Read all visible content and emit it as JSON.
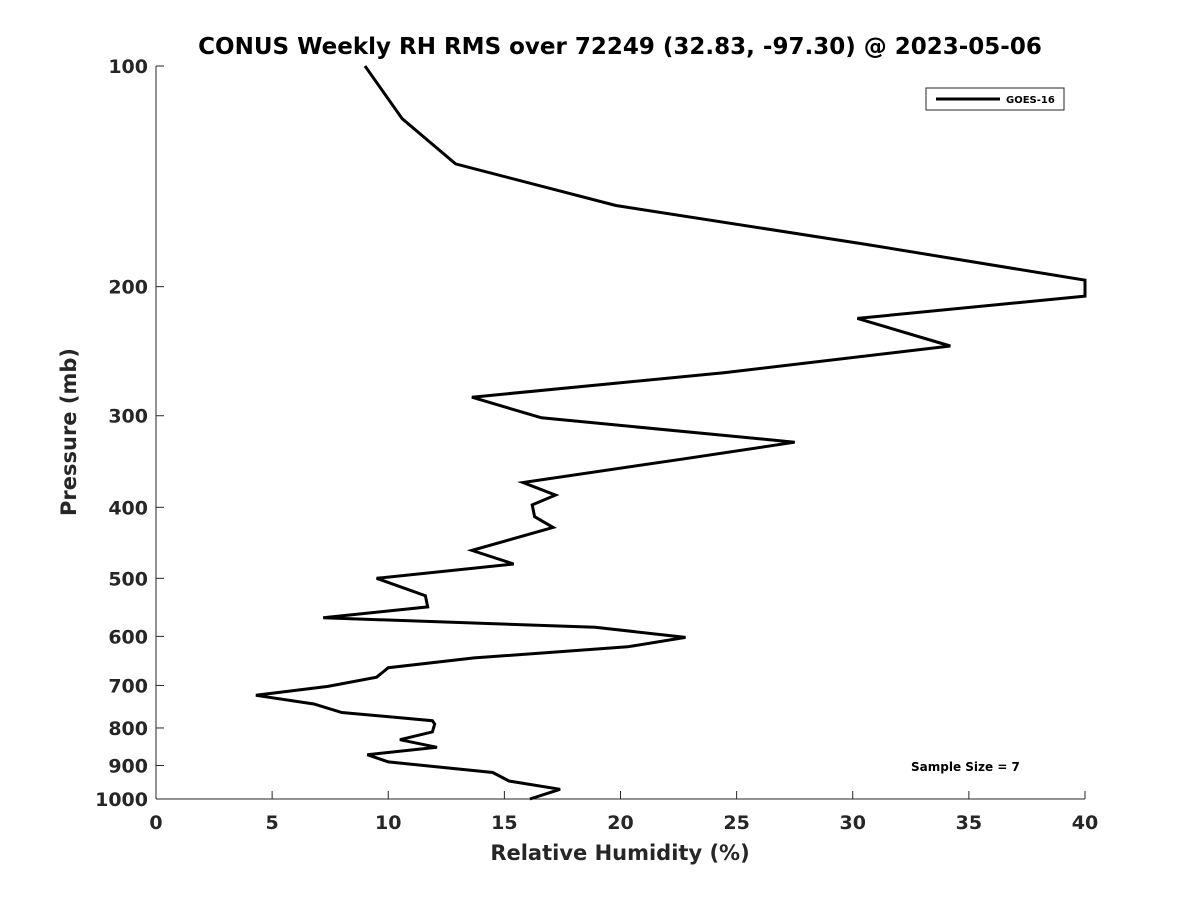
{
  "chart_data": {
    "type": "line",
    "title": "CONUS Weekly RH RMS over 72249 (32.83, -97.30) @ 2023-05-06",
    "xlabel": "Relative Humidity (%)",
    "ylabel": "Pressure (mb)",
    "xlim": [
      0,
      40
    ],
    "ylim": [
      100,
      1000
    ],
    "y_scale": "log",
    "y_reversed": true,
    "x_ticks": [
      0,
      5,
      10,
      15,
      20,
      25,
      30,
      35,
      40
    ],
    "y_ticks": [
      100,
      200,
      300,
      400,
      500,
      600,
      700,
      800,
      900,
      1000
    ],
    "grid": false,
    "legend": {
      "position": "top-right",
      "entries": [
        "GOES-16"
      ]
    },
    "annotation": "Sample Size = 7",
    "colors": {
      "series": "#000000",
      "axes": "#262626"
    },
    "series": [
      {
        "name": "GOES-16",
        "points": [
          [
            9.0,
            100
          ],
          [
            10.6,
            118
          ],
          [
            12.9,
            136
          ],
          [
            19.8,
            155
          ],
          [
            30.5,
            175
          ],
          [
            40.0,
            196
          ],
          [
            40.0,
            206
          ],
          [
            30.2,
            221
          ],
          [
            34.2,
            241
          ],
          [
            24.5,
            262
          ],
          [
            13.6,
            283
          ],
          [
            16.6,
            302
          ],
          [
            27.5,
            326
          ],
          [
            22.6,
            344
          ],
          [
            15.8,
            370
          ],
          [
            17.2,
            385
          ],
          [
            16.2,
            397
          ],
          [
            16.3,
            412
          ],
          [
            17.1,
            426
          ],
          [
            13.6,
            458
          ],
          [
            15.4,
            478
          ],
          [
            9.5,
            500
          ],
          [
            11.6,
            528
          ],
          [
            11.7,
            547
          ],
          [
            7.2,
            566
          ],
          [
            18.9,
            583
          ],
          [
            22.8,
            602
          ],
          [
            20.3,
            620
          ],
          [
            13.7,
            642
          ],
          [
            10.0,
            662
          ],
          [
            9.5,
            682
          ],
          [
            7.4,
            702
          ],
          [
            4.3,
            722
          ],
          [
            6.8,
            742
          ],
          [
            8.0,
            762
          ],
          [
            11.9,
            782
          ],
          [
            12.0,
            790
          ],
          [
            11.9,
            810
          ],
          [
            10.5,
            830
          ],
          [
            12.1,
            850
          ],
          [
            9.1,
            870
          ],
          [
            10.0,
            890
          ],
          [
            14.5,
            920
          ],
          [
            15.2,
            945
          ],
          [
            17.4,
            970
          ],
          [
            16.1,
            1000
          ]
        ]
      }
    ]
  }
}
